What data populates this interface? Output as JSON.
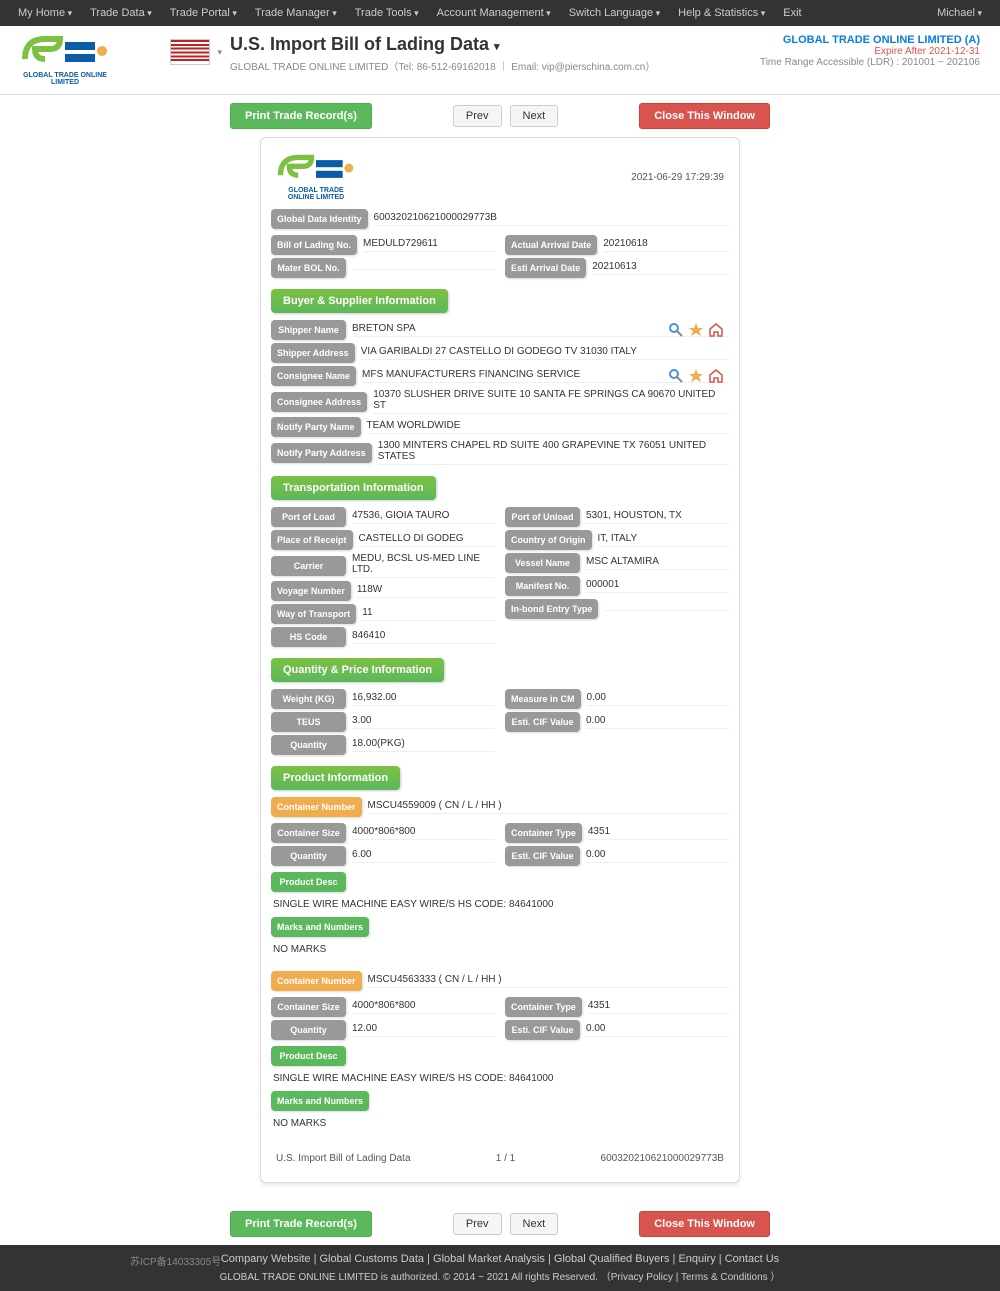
{
  "topnav": {
    "items": [
      "My Home",
      "Trade Data",
      "Trade Portal",
      "Trade Manager",
      "Trade Tools",
      "Account Management",
      "Switch Language",
      "Help & Statistics",
      "Exit"
    ],
    "user": "Michael"
  },
  "header": {
    "logo_text": "GLOBAL TRADE ONLINE LIMITED",
    "title": "U.S. Import Bill of Lading Data",
    "subtitle": "GLOBAL TRADE ONLINE LIMITED（Tel: 86-512-69162018 ｜ Email: vip@pierschina.com.cn）",
    "company": "GLOBAL TRADE ONLINE LIMITED (A)",
    "expire": "Expire After 2021-12-31",
    "range": "Time Range Accessible (LDR) : 201001 ~ 202106"
  },
  "toolbar": {
    "print": "Print Trade Record(s)",
    "prev": "Prev",
    "next": "Next",
    "close": "Close This Window"
  },
  "doc": {
    "timestamp": "2021-06-29 17:29:39",
    "identity": {
      "gdi_label": "Global Data Identity",
      "gdi": "600320210621000029773B",
      "bol_label": "Bill of Lading No.",
      "bol": "MEDULD729611",
      "mbol_label": "Mater BOL No.",
      "mbol": "",
      "aad_label": "Actual Arrival Date",
      "aad": "20210618",
      "ead_label": "Esti Arrival Date",
      "ead": "20210613"
    },
    "buyer_title": "Buyer & Supplier Information",
    "buyer": {
      "shipper_name_label": "Shipper Name",
      "shipper_name": "BRETON SPA",
      "shipper_addr_label": "Shipper Address",
      "shipper_addr": "VIA GARIBALDI 27 CASTELLO DI GODEGO TV 31030 ITALY",
      "consignee_name_label": "Consignee Name",
      "consignee_name": "MFS MANUFACTURERS FINANCING SERVICE",
      "consignee_addr_label": "Consignee Address",
      "consignee_addr": "10370 SLUSHER DRIVE SUITE 10 SANTA FE SPRINGS CA 90670 UNITED ST",
      "notify_name_label": "Notify Party Name",
      "notify_name": "TEAM WORLDWIDE",
      "notify_addr_label": "Notify Party Address",
      "notify_addr": "1300 MINTERS CHAPEL RD SUITE 400 GRAPEVINE TX 76051 UNITED STATES"
    },
    "transport_title": "Transportation Information",
    "transport": {
      "pol_label": "Port of Load",
      "pol": "47536, GIOIA TAURO",
      "pou_label": "Port of Unload",
      "pou": "5301, HOUSTON, TX",
      "por_label": "Place of Receipt",
      "por": "CASTELLO DI GODEG",
      "coo_label": "Country of Origin",
      "coo": "IT, ITALY",
      "carrier_label": "Carrier",
      "carrier": "MEDU, BCSL US-MED LINE LTD.",
      "vessel_label": "Vessel Name",
      "vessel": "MSC ALTAMIRA",
      "voyage_label": "Voyage Number",
      "voyage": "118W",
      "manifest_label": "Manifest No.",
      "manifest": "000001",
      "wot_label": "Way of Transport",
      "wot": "11",
      "ibet_label": "In-bond Entry Type",
      "ibet": "",
      "hs_label": "HS Code",
      "hs": "846410"
    },
    "qty_title": "Quantity & Price Information",
    "qty": {
      "weight_label": "Weight (KG)",
      "weight": "16,932.00",
      "mic_label": "Measure in CM",
      "mic": "0.00",
      "teus_label": "TEUS",
      "teus": "3.00",
      "ecv_label": "Esti. CIF Value",
      "ecv": "0.00",
      "q_label": "Quantity",
      "q": "18.00(PKG)"
    },
    "product_title": "Product Information",
    "containers": [
      {
        "cn_label": "Container Number",
        "cn": "MSCU4559009 ( CN / L / HH )",
        "cs_label": "Container Size",
        "cs": "4000*806*800",
        "ct_label": "Container Type",
        "ct": "4351",
        "q_label": "Quantity",
        "q": "6.00",
        "ecv_label": "Esti. CIF Value",
        "ecv": "0.00",
        "pd_label": "Product Desc",
        "pd": "SINGLE WIRE MACHINE EASY WIRE/S HS CODE: 84641000",
        "mn_label": "Marks and Numbers",
        "mn": "NO MARKS"
      },
      {
        "cn_label": "Container Number",
        "cn": "MSCU4563333 ( CN / L / HH )",
        "cs_label": "Container Size",
        "cs": "4000*806*800",
        "ct_label": "Container Type",
        "ct": "4351",
        "q_label": "Quantity",
        "q": "12.00",
        "ecv_label": "Esti. CIF Value",
        "ecv": "0.00",
        "pd_label": "Product Desc",
        "pd": "SINGLE WIRE MACHINE EASY WIRE/S HS CODE: 84641000",
        "mn_label": "Marks and Numbers",
        "mn": "NO MARKS"
      }
    ],
    "footer_left": "U.S. Import Bill of Lading Data",
    "footer_center": "1 / 1",
    "footer_right": "600320210621000029773B"
  },
  "footer": {
    "links": [
      "Company Website",
      "Global Customs Data",
      "Global Market Analysis",
      "Global Qualified Buyers",
      "Enquiry",
      "Contact Us"
    ],
    "icp": "苏ICP备14033305号",
    "copyright": "GLOBAL TRADE ONLINE LIMITED is authorized. © 2014 ~ 2021 All rights Reserved.",
    "privacy": "Privacy Policy",
    "terms": "Terms & Conditions"
  }
}
